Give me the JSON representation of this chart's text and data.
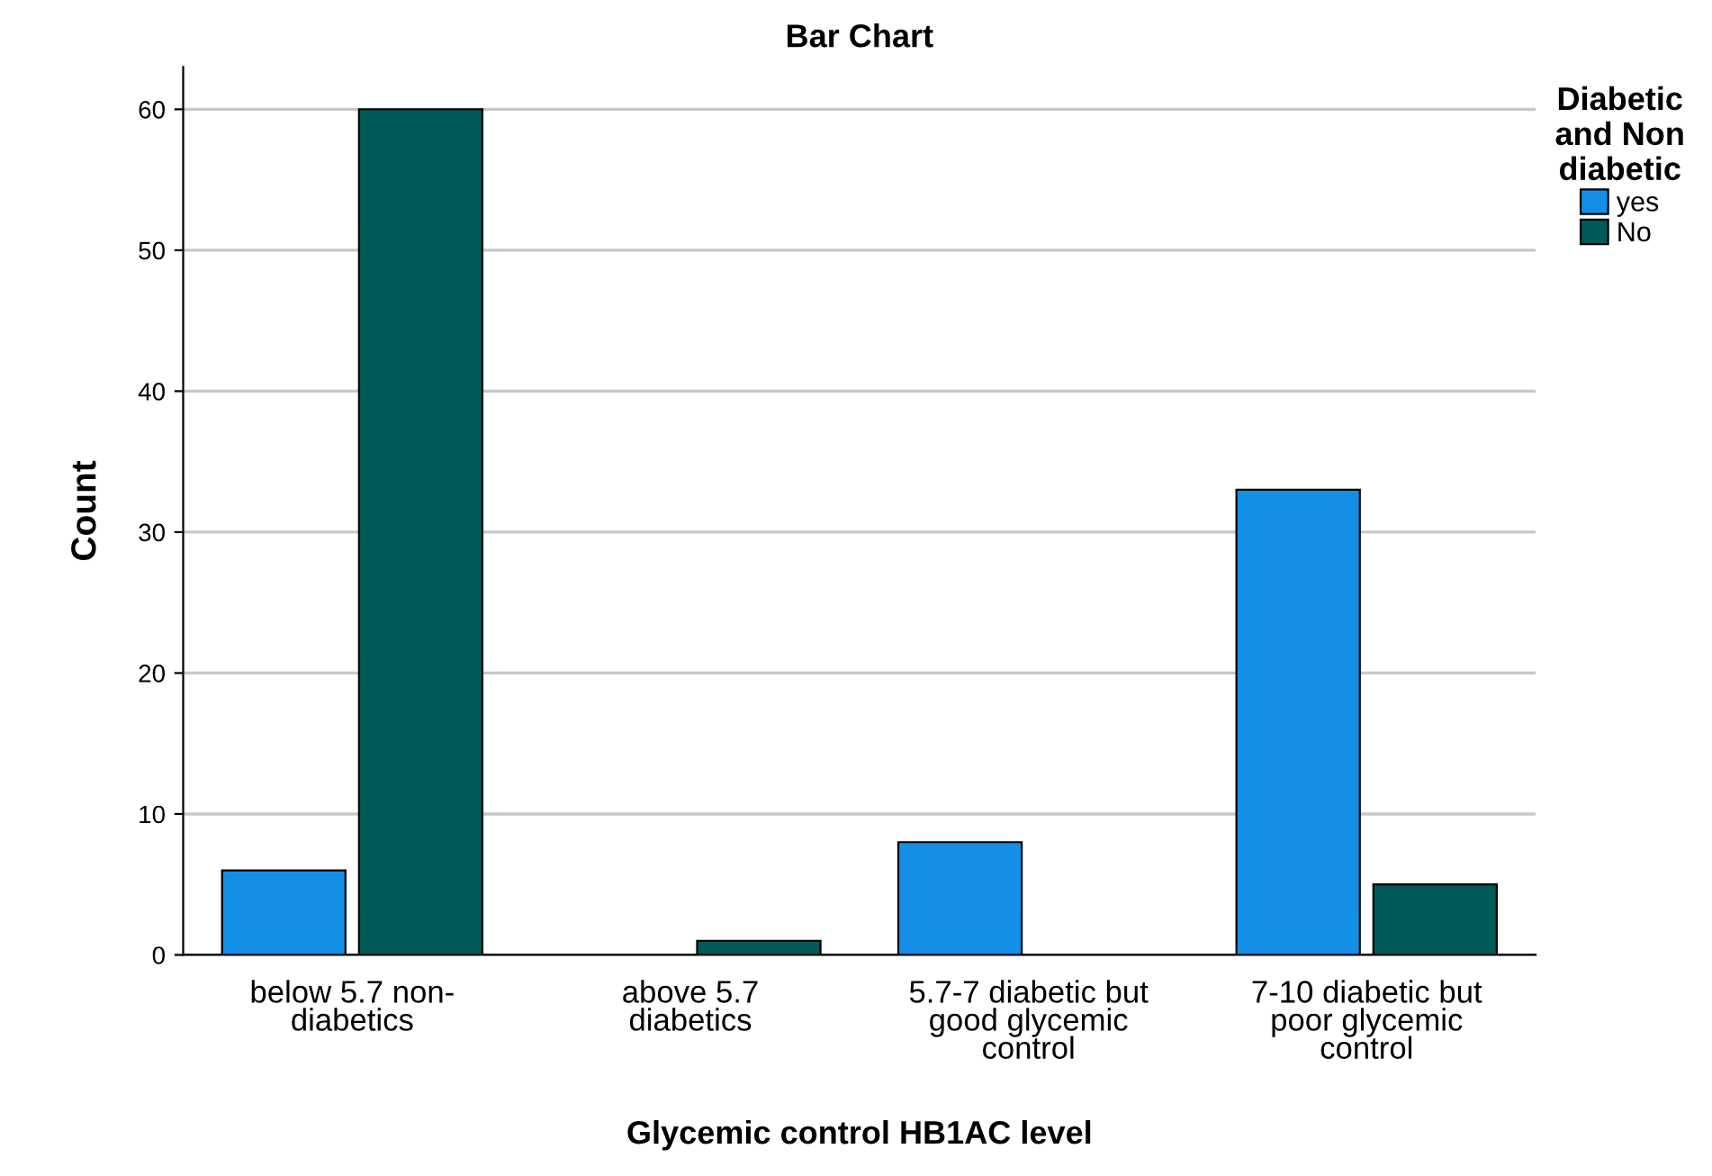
{
  "chart_data": {
    "type": "bar",
    "title": "Bar Chart",
    "xlabel": "Glycemic control HB1AC level",
    "ylabel": "Count",
    "legend_title": "Diabetic\nand Non\ndiabetic",
    "categories": [
      "below 5.7 non-\ndiabetics",
      "above 5.7\ndiabetics",
      "5.7-7 diabetic but\ngood glycemic\ncontrol",
      "7-10 diabetic but\npoor glycemic\ncontrol"
    ],
    "series": [
      {
        "name": "yes",
        "color": "#1390e6",
        "values": [
          6,
          null,
          8,
          33
        ]
      },
      {
        "name": "No",
        "color": "#005a58",
        "values": [
          60,
          1,
          null,
          5
        ]
      }
    ],
    "ylim": [
      0,
      63
    ],
    "yticks": [
      0,
      10,
      20,
      30,
      40,
      50,
      60
    ],
    "grid": "y",
    "legend": "top right"
  }
}
